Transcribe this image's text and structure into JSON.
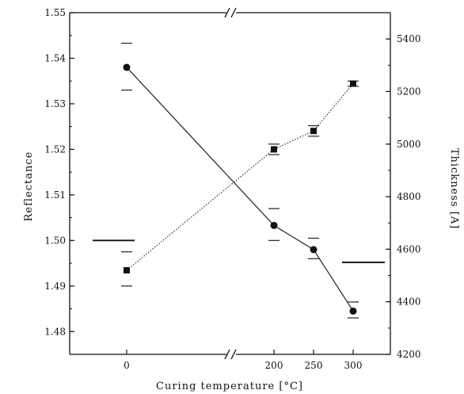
{
  "chart_data": {
    "type": "line",
    "xlabel": "Curing temperature [°C]",
    "ylabel_left": "Reflectance",
    "ylabel_right": "Thickness [A]",
    "x_categories": [
      "0",
      "200",
      "250",
      "300"
    ],
    "axis_break_marker": "//",
    "y_left": {
      "range": [
        1.475,
        1.55
      ],
      "ticks": [
        "1.48",
        "1.49",
        "1.50",
        "1.51",
        "1.52",
        "1.53",
        "1.54",
        "1.55"
      ],
      "tick_values": [
        1.48,
        1.49,
        1.5,
        1.51,
        1.52,
        1.53,
        1.54,
        1.55
      ]
    },
    "y_right": {
      "range": [
        4200,
        5500
      ],
      "ticks": [
        "4200",
        "4400",
        "4600",
        "4800",
        "5000",
        "5200",
        "5400"
      ],
      "tick_values": [
        4200,
        4400,
        4600,
        4800,
        5000,
        5200,
        5400
      ]
    },
    "series": [
      {
        "marker": "circle",
        "line": "solid",
        "axis": "left",
        "values": [
          1.538,
          1.5033,
          1.498,
          1.4845
        ],
        "err_high": [
          1.5433,
          1.507,
          1.5005,
          1.4865
        ],
        "err_low": [
          1.533,
          1.5,
          1.496,
          1.483
        ]
      },
      {
        "marker": "square",
        "line": "dotted",
        "axis": "right",
        "values": [
          4520,
          4980,
          5050,
          5230
        ],
        "err_high": [
          4590,
          5000,
          5070,
          5240
        ],
        "err_low": [
          4460,
          4960,
          5030,
          5220
        ]
      }
    ],
    "axis_indicators": [
      {
        "points_to": "left",
        "value": 1.5
      },
      {
        "points_to": "right",
        "value": 4550
      }
    ],
    "grid": false,
    "legend": "none"
  }
}
